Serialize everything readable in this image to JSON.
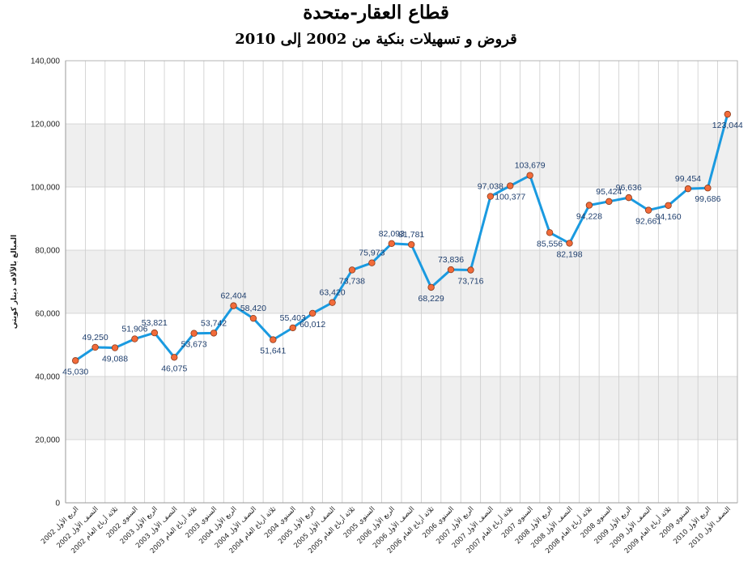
{
  "chart_data": {
    "type": "line",
    "title": "قطاع العقار-متحدة",
    "subtitle": "قروض و تسهيلات بنكية من 2002 إلى 2010",
    "ylabel": "المبالغ بالآلاف دينار كويتي",
    "xlabel": "",
    "ylim": [
      0,
      140000
    ],
    "yticks": [
      {
        "value": 0,
        "label": "0"
      },
      {
        "value": 20000,
        "label": "20,000"
      },
      {
        "value": 40000,
        "label": "40,000"
      },
      {
        "value": 60000,
        "label": "60,000"
      },
      {
        "value": 80000,
        "label": "80,000"
      },
      {
        "value": 100000,
        "label": "100,000"
      },
      {
        "value": 120000,
        "label": "120,000"
      },
      {
        "value": 140000,
        "label": "140,000"
      }
    ],
    "grid": true,
    "legend": "none",
    "colors": {
      "line": "#1a9ae0",
      "marker_fill": "#f26b3a",
      "marker_stroke": "#8a3a1a",
      "band": "#efefef",
      "grid": "#cccccc",
      "label": "#1f3f6e"
    },
    "categories": [
      "الربع الأول 2002",
      "النصف الأول 2002",
      "ثلاثة أرباع العام 2002",
      "السنوي 2002",
      "الربع الأول 2003",
      "النصف الأول 2003",
      "ثلاثة أرباع العام 2003",
      "السنوي 2003",
      "الربع الأول 2004",
      "النصف الأول 2004",
      "ثلاثة أرباع العام 2004",
      "السنوي 2004",
      "الربع الأول 2005",
      "النصف الأول 2005",
      "ثلاثة أرباع العام 2005",
      "السنوي 2005",
      "الربع الأول 2006",
      "النصف الأول 2006",
      "ثلاثة أرباع العام 2006",
      "السنوي 2006",
      "الربع الأول 2007",
      "النصف الأول 2007",
      "ثلاثة أرباع العام 2007",
      "السنوي 2007",
      "الربع الأول 2008",
      "النصف الأول 2008",
      "ثلاثة أرباع العام 2008",
      "السنوي 2008",
      "الربع الأول 2009",
      "النصف الأول 2009",
      "ثلاثة أرباع العام 2009",
      "السنوي 2009",
      "الربع الأول 2010",
      "النصف الأول 2010"
    ],
    "values": [
      45030,
      49250,
      49088,
      51906,
      53821,
      46075,
      53673,
      53742,
      62404,
      58420,
      51641,
      55403,
      60012,
      63420,
      73738,
      75973,
      82093,
      81781,
      68229,
      73836,
      73716,
      97038,
      100377,
      103679,
      85556,
      82198,
      94228,
      95424,
      96636,
      92661,
      94160,
      99454,
      99686,
      123044
    ],
    "data_labels": [
      "45,030",
      "49,250",
      "49,088",
      "51,906",
      "53,821",
      "46,075",
      "53,673",
      "53,742",
      "62,404",
      "58,420",
      "51,641",
      "55,403",
      "60,012",
      "63,420",
      "73,738",
      "75,973",
      "82,093",
      "81,781",
      "68,229",
      "73,836",
      "73,716",
      "97,038",
      "100,377",
      "103,679",
      "85,556",
      "82,198",
      "94,228",
      "95,424",
      "96,636",
      "92,661",
      "94,160",
      "99,454",
      "99,686",
      "123,044"
    ]
  }
}
